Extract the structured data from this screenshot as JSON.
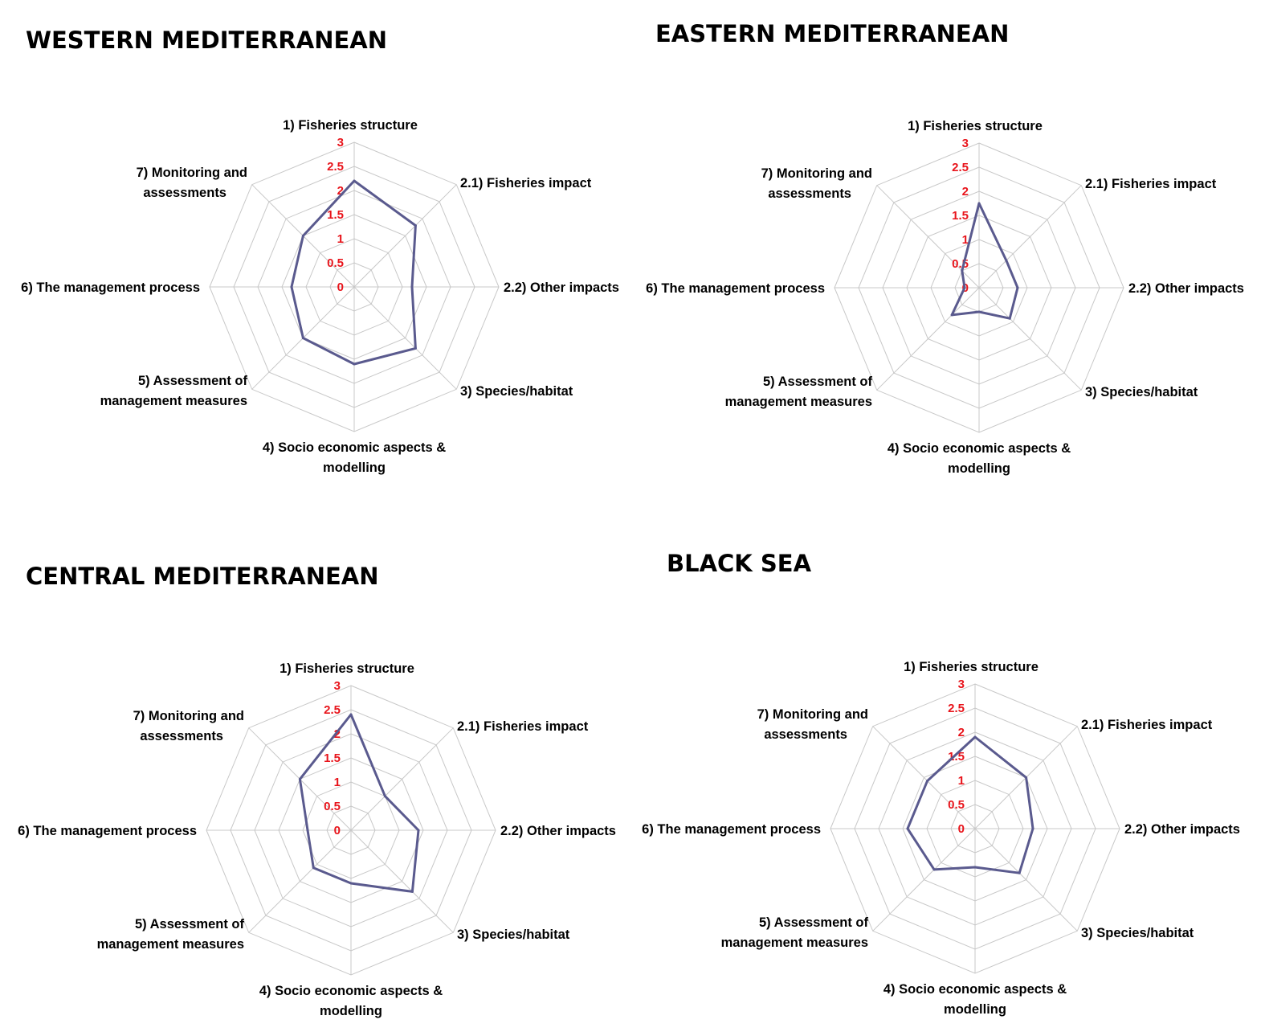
{
  "chart_data": [
    {
      "type": "radar",
      "title": "WESTERN MEDITERRANEAN",
      "axes": [
        "1) Fisheries  structure",
        "2.1) Fisheries impact",
        "2.2) Other impacts",
        "3) Species/habitat",
        "4) Socio economic aspects &",
        "5) Assessment of",
        "6) The management process",
        "7) Monitoring and"
      ],
      "axis_label_second_lines": [
        "",
        "",
        "",
        "",
        "modelling",
        "management measures",
        "",
        "assessments"
      ],
      "ticks": [
        "0",
        "0.5",
        "1",
        "1.5",
        "2",
        "2.5",
        "3"
      ],
      "rmax": 3,
      "values": [
        2.2,
        1.8,
        1.2,
        1.8,
        1.6,
        1.5,
        1.3,
        1.5
      ]
    },
    {
      "type": "radar",
      "title": "EASTERN MEDITERRANEAN",
      "axes": [
        "1) Fisheries  structure",
        "2.1) Fisheries impact",
        "2.2) Other impacts",
        "3) Species/habitat",
        "4) Socio economic aspects &",
        "5) Assessment of",
        "6) The management process",
        "7) Monitoring and"
      ],
      "axis_label_second_lines": [
        "",
        "",
        "",
        "",
        "modelling",
        "management measures",
        "",
        "assessments"
      ],
      "ticks": [
        "0",
        "0.5",
        "1",
        "1.5",
        "2",
        "2.5",
        "3"
      ],
      "rmax": 3,
      "values": [
        1.75,
        0.8,
        0.8,
        0.9,
        0.5,
        0.8,
        0.3,
        0.5
      ]
    },
    {
      "type": "radar",
      "title": "CENTRAL MEDITERRANEAN",
      "axes": [
        "1) Fisheries  structure",
        "2.1) Fisheries impact",
        "2.2) Other impacts",
        "3) Species/habitat",
        "4) Socio economic aspects &",
        "5) Assessment of",
        "6) The management process",
        "7) Monitoring and"
      ],
      "axis_label_second_lines": [
        "",
        "",
        "",
        "",
        "modelling",
        "management measures",
        "",
        "assessments"
      ],
      "ticks": [
        "0",
        "0.5",
        "1",
        "1.5",
        "2",
        "2.5",
        "3"
      ],
      "rmax": 3,
      "values": [
        2.4,
        1.0,
        1.4,
        1.8,
        1.1,
        1.1,
        0.9,
        1.5
      ]
    },
    {
      "type": "radar",
      "title": "BLACK SEA",
      "axes": [
        "1) Fisheries  structure",
        "2.1) Fisheries impact",
        "2.2) Other impacts",
        "3) Species/habitat",
        "4) Socio economic aspects &",
        "5) Assessment of",
        "6) The management process",
        "7) Monitoring and"
      ],
      "axis_label_second_lines": [
        "",
        "",
        "",
        "",
        "modelling",
        "management measures",
        "",
        "assessments"
      ],
      "ticks": [
        "0",
        "0.5",
        "1",
        "1.5",
        "2",
        "2.5",
        "3"
      ],
      "rmax": 3,
      "values": [
        1.9,
        1.5,
        1.2,
        1.3,
        0.8,
        1.2,
        1.4,
        1.4
      ]
    }
  ],
  "colors": {
    "series": "#5a5a8e",
    "grid": "#c8c8c8",
    "ticks": "#e8141b"
  }
}
